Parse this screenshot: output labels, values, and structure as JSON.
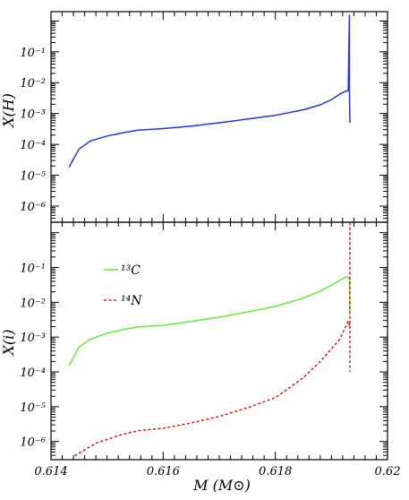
{
  "chart_data": [
    {
      "type": "line",
      "panel": "top",
      "ylabel": "X(H)",
      "xlim": [
        0.614,
        0.62
      ],
      "yscale": "log",
      "ylim": [
        3e-07,
        2
      ],
      "y_tick_labels": [
        "10⁻¹",
        "10⁻²",
        "10⁻³",
        "10⁻⁴",
        "10⁻⁵",
        "10⁻⁶"
      ],
      "y_tick_values": [
        0.1,
        0.01,
        0.001,
        0.0001,
        1e-05,
        1e-06
      ],
      "series": [
        {
          "color": "#2233ee",
          "x": [
            0.61432,
            0.6145,
            0.6147,
            0.615,
            0.6153,
            0.61555,
            0.616,
            0.6165,
            0.617,
            0.6175,
            0.618,
            0.6185,
            0.6188,
            0.619,
            0.61915,
            0.61925,
            0.6193,
            0.61932,
            0.61932,
            0.61932,
            0.61933
          ],
          "y": [
            1.82e-05,
            7.08e-05,
            0.000129,
            0.000186,
            0.00024,
            0.000288,
            0.000324,
            0.000389,
            0.000501,
            0.000661,
            0.000871,
            0.00132,
            0.00191,
            0.00282,
            0.00427,
            0.00525,
            0.0055,
            1.55,
            0.0055,
            0.0062,
            0.000501
          ]
        }
      ]
    },
    {
      "type": "line",
      "panel": "bottom",
      "xlabel": "M (M⊙)",
      "ylabel": "X(i)",
      "xlim": [
        0.614,
        0.62
      ],
      "yscale": "log",
      "ylim": [
        3e-07,
        2
      ],
      "x_tick_labels": [
        "0.614",
        "0.616",
        "0.618",
        "0.62"
      ],
      "x_tick_values": [
        0.614,
        0.616,
        0.618,
        0.62
      ],
      "y_tick_labels": [
        "10⁻¹",
        "10⁻²",
        "10⁻³",
        "10⁻⁴",
        "10⁻⁵",
        "10⁻⁶"
      ],
      "y_tick_values": [
        0.1,
        0.01,
        0.001,
        0.0001,
        1e-05,
        1e-06
      ],
      "legend_position": "upper-left",
      "series": [
        {
          "name": "¹³C",
          "color": "#66ee33",
          "dash": "solid",
          "x": [
            0.61432,
            0.6145,
            0.6147,
            0.615,
            0.6153,
            0.61555,
            0.616,
            0.6165,
            0.617,
            0.6175,
            0.618,
            0.6185,
            0.6188,
            0.619,
            0.61915,
            0.61925,
            0.61932,
            0.61933
          ],
          "y": [
            0.000151,
            0.000513,
            0.000871,
            0.00129,
            0.00166,
            0.00195,
            0.00219,
            0.00282,
            0.00372,
            0.00525,
            0.00759,
            0.0132,
            0.0209,
            0.0309,
            0.0427,
            0.0525,
            0.05,
            0.0052
          ]
        },
        {
          "name": "¹⁴N",
          "color": "#ee1111",
          "dash": "dashed",
          "x": [
            0.61442,
            0.6148,
            0.6152,
            0.61555,
            0.616,
            0.6165,
            0.617,
            0.6175,
            0.618,
            0.6185,
            0.6188,
            0.619,
            0.61915,
            0.61925,
            0.6193,
            0.61933,
            0.61933,
            0.61933
          ],
          "y": [
            3.9e-07,
            8.9e-07,
            1.48e-06,
            2.04e-06,
            2.4e-06,
            3.39e-06,
            5.25e-06,
            9.3e-06,
            1.82e-05,
            6.8e-05,
            0.0002,
            0.00046,
            0.00087,
            0.00195,
            0.0029,
            0.0018,
            2.12,
            0.000102
          ]
        }
      ]
    }
  ]
}
